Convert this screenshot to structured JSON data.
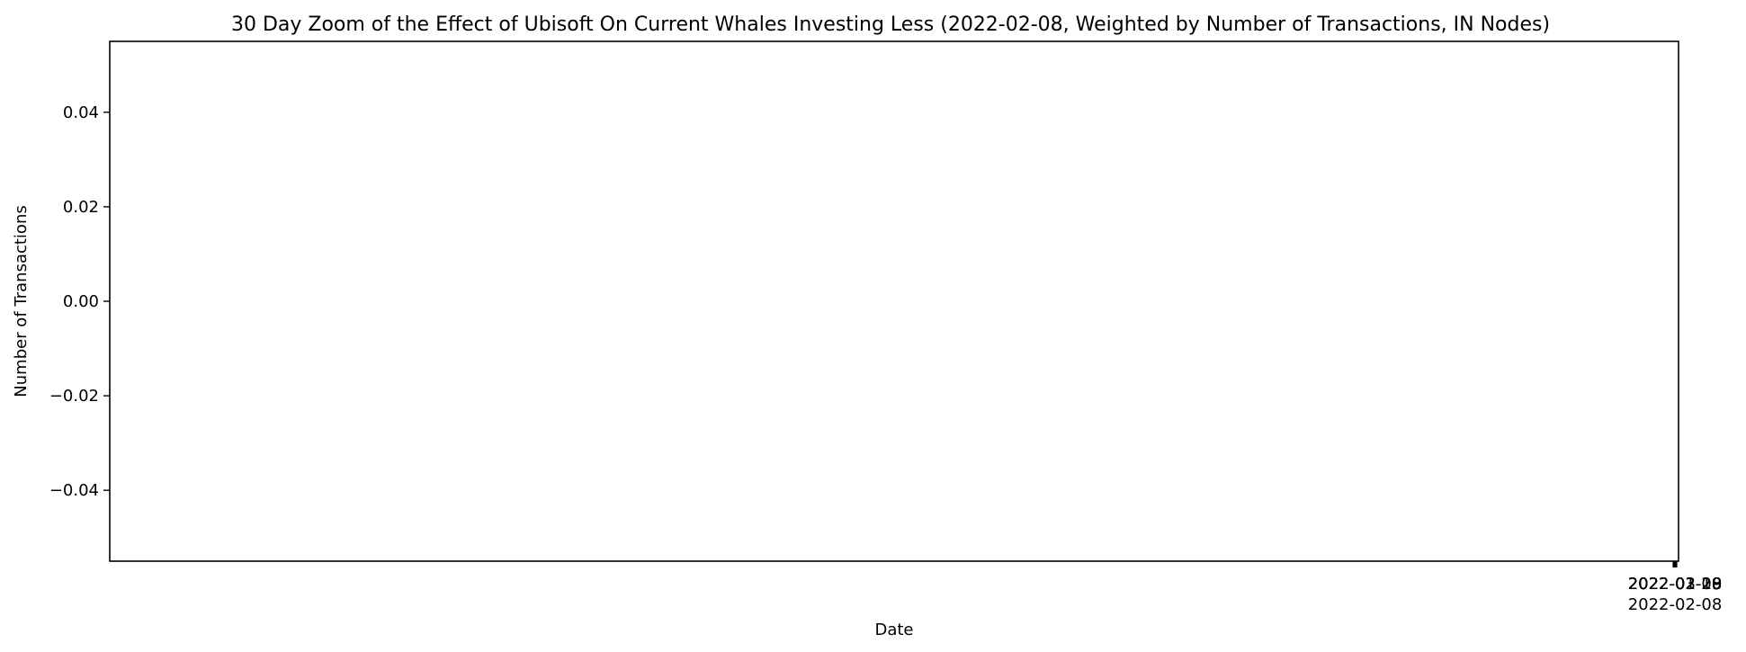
{
  "chart_data": {
    "type": "line",
    "title": "30 Day Zoom of the Effect of Ubisoft On Current Whales Investing Less (2022-02-08, Weighted by Number of Transactions, IN Nodes)",
    "xlabel": "Date",
    "ylabel": "Number of Transactions",
    "ylim": [
      -0.055,
      0.055
    ],
    "y_ticks": [
      {
        "value": 0.04,
        "label": "0.04"
      },
      {
        "value": 0.02,
        "label": "0.02"
      },
      {
        "value": 0.0,
        "label": "0.00"
      },
      {
        "value": -0.02,
        "label": "−0.02"
      },
      {
        "value": -0.04,
        "label": "−0.04"
      }
    ],
    "x_tick_labels_overlapping": [
      "2022-01-09",
      "2022-01-19",
      "2022-01-29",
      "2022-02-18",
      "2022-02-28",
      "2022-03-10"
    ],
    "x_tick_label_reference": "2022-02-08",
    "series": [],
    "grid": false,
    "legend": "none",
    "colors": {
      "axes": "#000000",
      "background": "#ffffff"
    }
  }
}
